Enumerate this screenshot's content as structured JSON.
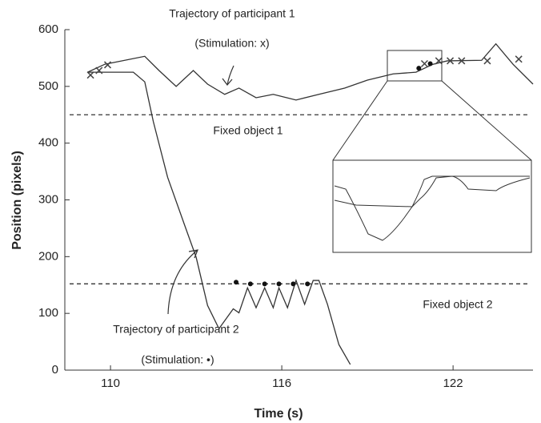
{
  "chart_data": {
    "type": "line",
    "xlabel": "Time (s)",
    "ylabel": "Position (pixels)",
    "xlim": [
      108.4,
      124.8
    ],
    "xticks": [
      110,
      116,
      122
    ],
    "ylim": [
      0,
      600
    ],
    "yticks": [
      0,
      100,
      200,
      300,
      400,
      500,
      600
    ],
    "series": [
      {
        "name": "Trajectory of participant 1",
        "color": "#333333",
        "x": [
          109.2,
          109.8,
          111.2,
          111.7,
          112.3,
          112.9,
          113.4,
          114.0,
          114.5,
          115.1,
          115.7,
          116.5,
          117.3,
          118.2,
          119.0,
          119.9,
          120.7,
          121.3,
          121.8,
          123.0,
          123.5,
          124.1,
          124.8
        ],
        "values": [
          525,
          539,
          553,
          528,
          500,
          528,
          504,
          486,
          497,
          480,
          486,
          476,
          486,
          497,
          511,
          522,
          525,
          539,
          545,
          546,
          575,
          539,
          504
        ]
      },
      {
        "name": "Trajectory of participant 2",
        "color": "#333333",
        "x": [
          109.2,
          110.8,
          111.2,
          111.5,
          112.0,
          112.6,
          113.0,
          113.4,
          113.8,
          114.3,
          114.5,
          114.8,
          115.1,
          115.4,
          115.7,
          115.9,
          116.2,
          116.5,
          116.8,
          117.1,
          117.3,
          117.6,
          118.0,
          118.4
        ],
        "values": [
          525,
          525,
          508,
          438,
          340,
          255,
          199,
          114,
          73,
          108,
          101,
          145,
          110,
          145,
          110,
          145,
          110,
          158,
          116,
          158,
          158,
          116,
          45,
          10
        ]
      }
    ],
    "stimulation_1": {
      "x": [
        109.3,
        109.6,
        109.9,
        121.0,
        121.5,
        121.9,
        122.3,
        123.2,
        124.3
      ],
      "values": [
        520,
        528,
        538,
        540,
        545,
        545,
        545,
        545,
        548
      ]
    },
    "stimulation_2": {
      "x": [
        114.4,
        114.9,
        115.4,
        115.9,
        116.4,
        116.9,
        120.8,
        121.2
      ],
      "values": [
        155,
        152,
        152,
        152,
        152,
        152,
        532,
        540
      ]
    },
    "fixed_objects": [
      {
        "name": "Fixed object 1",
        "value": 450
      },
      {
        "name": "Fixed object 2",
        "value": 152
      }
    ],
    "annotations": [
      "(Stimulation: x)",
      "(Stimulation: •)"
    ]
  }
}
